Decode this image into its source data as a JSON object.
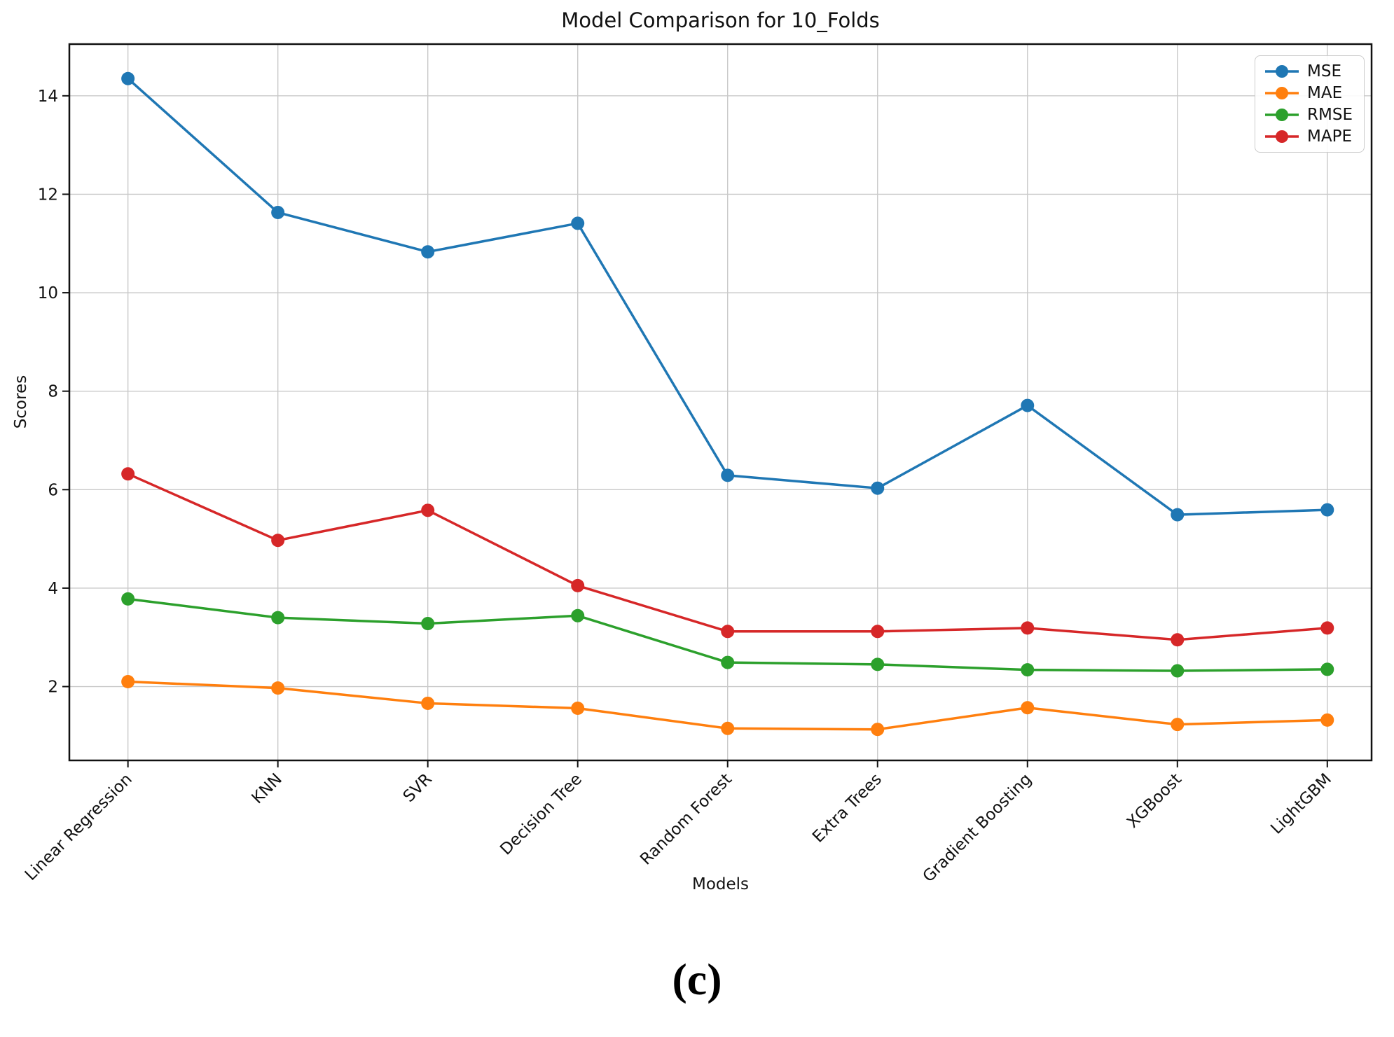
{
  "chart_data": {
    "type": "line",
    "title": "Model Comparison for 10_Folds",
    "xlabel": "Models",
    "ylabel": "Scores",
    "categories": [
      "Linear Regression",
      "KNN",
      "SVR",
      "Decision Tree",
      "Random Forest",
      "Extra Trees",
      "Gradient Boosting",
      "XGBoost",
      "LightGBM"
    ],
    "series": [
      {
        "name": "MSE",
        "color": "#1f77b4",
        "values": [
          14.35,
          11.63,
          10.83,
          11.41,
          6.29,
          6.03,
          7.71,
          5.49,
          5.59
        ]
      },
      {
        "name": "MAE",
        "color": "#ff7f0e",
        "values": [
          2.1,
          1.97,
          1.66,
          1.56,
          1.15,
          1.13,
          1.57,
          1.23,
          1.32
        ]
      },
      {
        "name": "RMSE",
        "color": "#2ca02c",
        "values": [
          3.78,
          3.4,
          3.28,
          3.44,
          2.49,
          2.45,
          2.34,
          2.32,
          2.35
        ]
      },
      {
        "name": "MAPE",
        "color": "#d62728",
        "values": [
          6.32,
          4.97,
          5.58,
          4.05,
          3.12,
          3.12,
          3.19,
          2.95,
          3.19
        ]
      }
    ],
    "ylim": [
      0.5,
      15.05
    ],
    "yticks": [
      2,
      4,
      6,
      8,
      10,
      12,
      14
    ],
    "grid": true,
    "legend_position": "upper right",
    "marker": "circle",
    "grid_color": "#c9c9c9",
    "axis_color": "#111111"
  },
  "caption": {
    "text": "(c)"
  }
}
